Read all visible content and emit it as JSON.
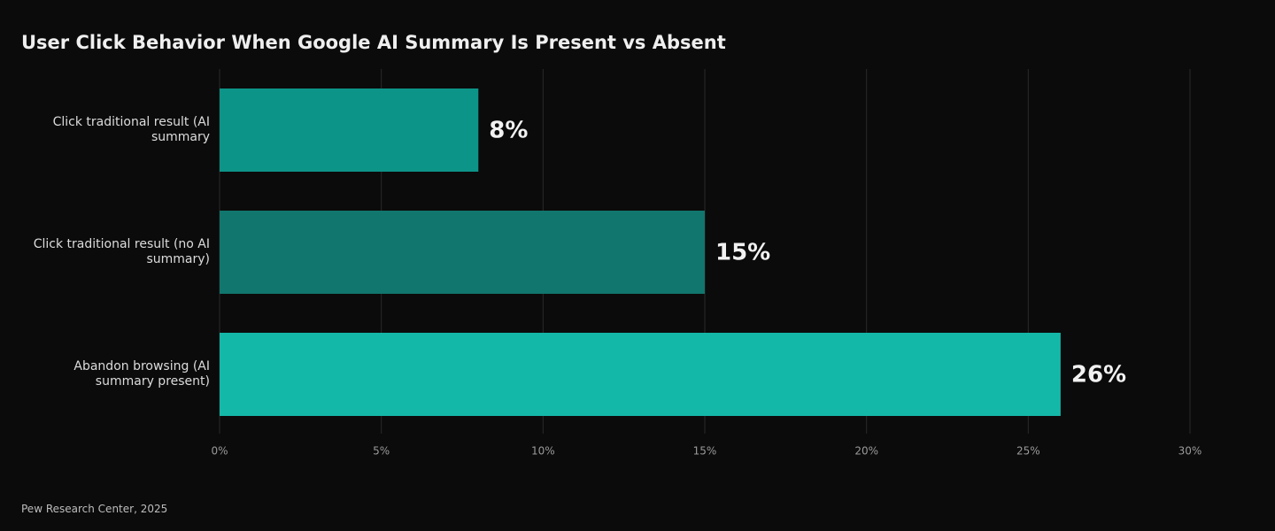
{
  "chart_data": {
    "type": "hbar",
    "title": "User Click Behavior When Google AI Summary Is Present vs Absent",
    "categories": [
      "Click traditional result (AI summary",
      "Click traditional result (no AI summary)",
      "Abandon browsing (AI summary present)"
    ],
    "values": [
      8,
      15,
      26
    ],
    "value_labels": [
      "8%",
      "15%",
      "26%"
    ],
    "colors": [
      "#0d9488",
      "#11766e",
      "#14b8a8"
    ],
    "xlim": [
      0,
      30
    ],
    "xticks": [
      {
        "value": 0,
        "label": "0%"
      },
      {
        "value": 5,
        "label": "5%"
      },
      {
        "value": 10,
        "label": "10%"
      },
      {
        "value": 15,
        "label": "15%"
      },
      {
        "value": 20,
        "label": "20%"
      },
      {
        "value": 25,
        "label": "25%"
      },
      {
        "value": 30,
        "label": "30%"
      }
    ],
    "grid": true,
    "source": "Pew Research Center, 2025"
  }
}
